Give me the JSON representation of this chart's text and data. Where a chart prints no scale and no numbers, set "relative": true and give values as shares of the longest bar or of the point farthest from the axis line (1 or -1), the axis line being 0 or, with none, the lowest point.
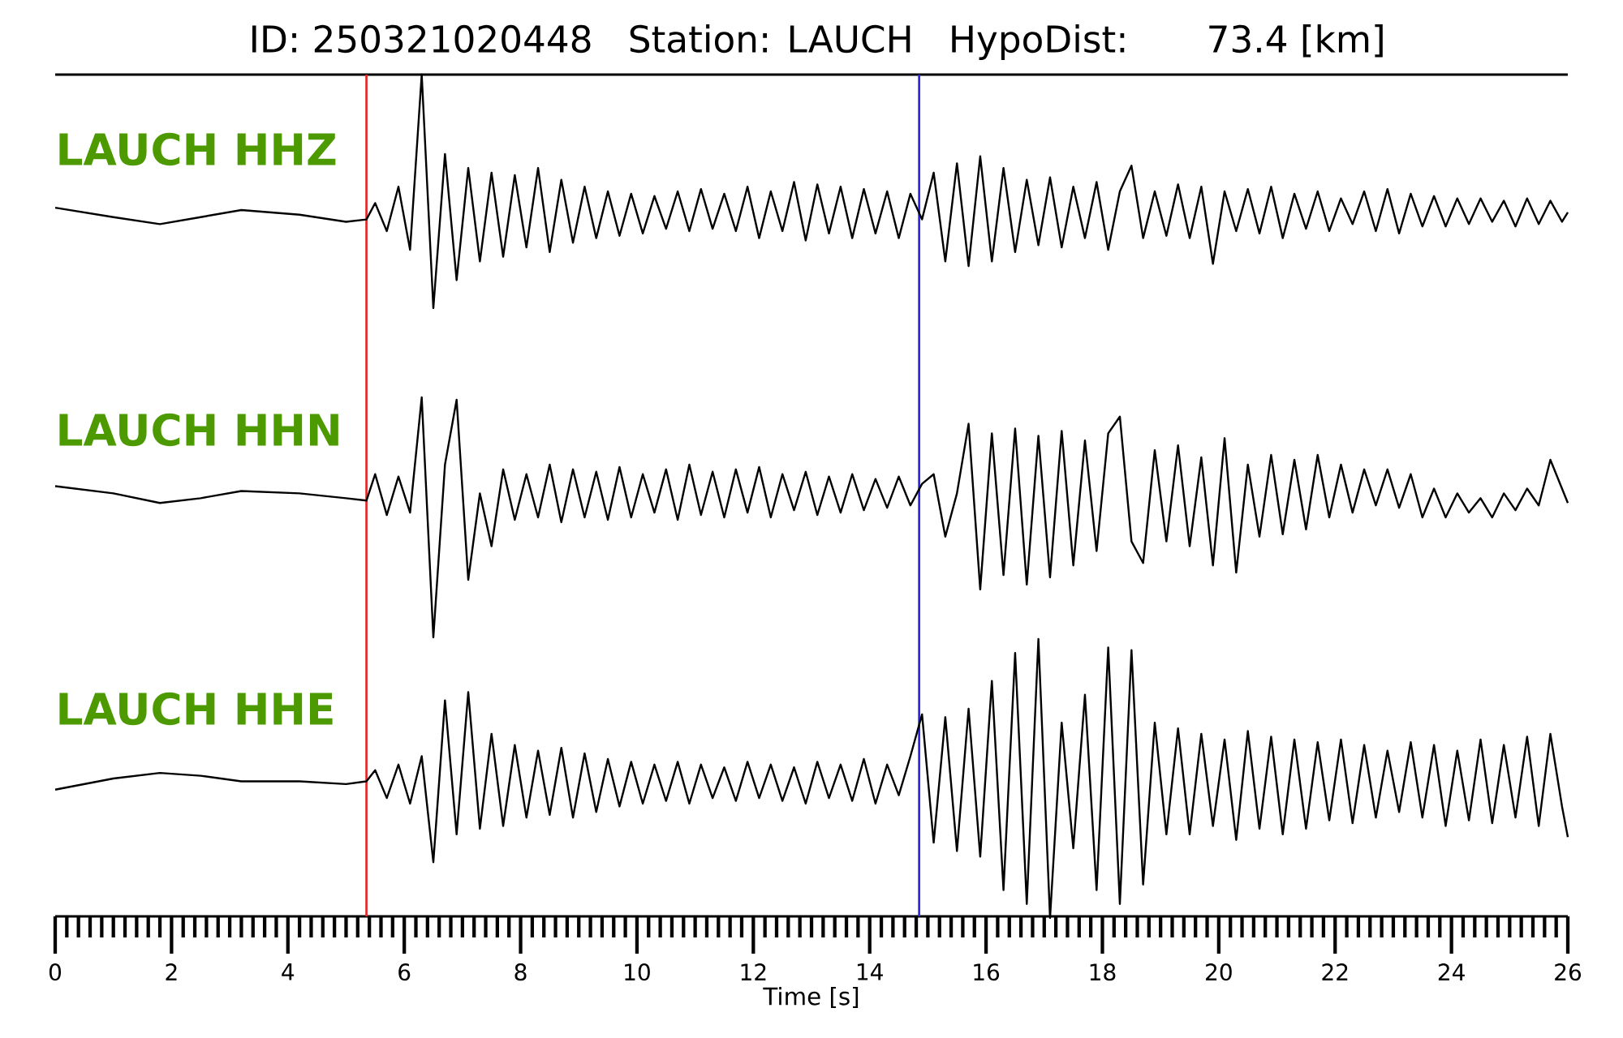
{
  "chart_data": [
    {
      "type": "line",
      "title": "ID: 250321020448   Station: LAUCH   HypoDist:     73.4 [km]",
      "relative": true,
      "tick_labels": false,
      "xlim": [
        0,
        26
      ],
      "x": [
        0,
        1,
        1.8,
        2.5,
        3.2,
        4.2,
        5,
        5.35,
        5.5,
        5.7,
        5.9,
        6.1,
        6.3,
        6.5,
        6.7,
        6.9,
        7.1,
        7.3,
        7.5,
        7.7,
        7.9,
        8.1,
        8.3,
        8.5,
        8.7,
        8.9,
        9.1,
        9.3,
        9.5,
        9.7,
        9.9,
        10.1,
        10.3,
        10.5,
        10.7,
        10.9,
        11.1,
        11.3,
        11.5,
        11.7,
        11.9,
        12.1,
        12.3,
        12.5,
        12.7,
        12.9,
        13.1,
        13.3,
        13.5,
        13.7,
        13.9,
        14.1,
        14.3,
        14.5,
        14.7,
        14.9,
        15.1,
        15.3,
        15.5,
        15.7,
        15.9,
        16.1,
        16.3,
        16.5,
        16.7,
        16.9,
        17.1,
        17.3,
        17.5,
        17.7,
        17.9,
        18.1,
        18.3,
        18.5,
        18.7,
        18.9,
        19.1,
        19.3,
        19.5,
        19.7,
        19.9,
        20.1,
        20.3,
        20.5,
        20.7,
        20.9,
        21.1,
        21.3,
        21.5,
        21.7,
        21.9,
        22.1,
        22.3,
        22.5,
        22.7,
        22.9,
        23.1,
        23.3,
        23.5,
        23.7,
        23.9,
        24.1,
        24.3,
        24.5,
        24.7,
        24.9,
        25.1,
        25.3,
        25.5,
        25.7,
        25.9,
        26
      ],
      "series": [
        {
          "name": "LAUCH HHZ",
          "color": "#000000",
          "values": [
            0.43,
            0.39,
            0.36,
            0.39,
            0.42,
            0.4,
            0.37,
            0.38,
            0.45,
            0.33,
            0.52,
            0.25,
            1.0,
            0.0,
            0.66,
            0.12,
            0.6,
            0.2,
            0.58,
            0.22,
            0.57,
            0.26,
            0.6,
            0.24,
            0.55,
            0.28,
            0.52,
            0.3,
            0.5,
            0.31,
            0.49,
            0.32,
            0.48,
            0.34,
            0.5,
            0.33,
            0.51,
            0.34,
            0.49,
            0.33,
            0.52,
            0.3,
            0.5,
            0.33,
            0.54,
            0.29,
            0.53,
            0.32,
            0.52,
            0.3,
            0.51,
            0.32,
            0.5,
            0.3,
            0.49,
            0.38,
            0.58,
            0.2,
            0.62,
            0.18,
            0.65,
            0.2,
            0.6,
            0.24,
            0.55,
            0.27,
            0.56,
            0.26,
            0.52,
            0.3,
            0.54,
            0.25,
            0.5,
            0.61,
            0.3,
            0.5,
            0.31,
            0.53,
            0.3,
            0.52,
            0.19,
            0.5,
            0.33,
            0.51,
            0.32,
            0.52,
            0.3,
            0.49,
            0.34,
            0.5,
            0.33,
            0.47,
            0.36,
            0.5,
            0.33,
            0.51,
            0.32,
            0.49,
            0.35,
            0.48,
            0.35,
            0.47,
            0.36,
            0.47,
            0.37,
            0.46,
            0.35,
            0.47,
            0.36,
            0.46,
            0.37,
            0.41
          ]
        }
      ],
      "ref_lines": [
        {
          "axis": "x",
          "value": 5.35,
          "color": "#e32626"
        },
        {
          "axis": "x",
          "value": 14.85,
          "color": "#2626e3"
        }
      ]
    },
    {
      "type": "line",
      "relative": true,
      "tick_labels": false,
      "xlim": [
        0,
        26
      ],
      "x": [
        0,
        1,
        1.8,
        2.5,
        3.2,
        4.2,
        5,
        5.35,
        5.5,
        5.7,
        5.9,
        6.1,
        6.3,
        6.5,
        6.7,
        6.9,
        7.1,
        7.3,
        7.5,
        7.7,
        7.9,
        8.1,
        8.3,
        8.5,
        8.7,
        8.9,
        9.1,
        9.3,
        9.5,
        9.7,
        9.9,
        10.1,
        10.3,
        10.5,
        10.7,
        10.9,
        11.1,
        11.3,
        11.5,
        11.7,
        11.9,
        12.1,
        12.3,
        12.5,
        12.7,
        12.9,
        13.1,
        13.3,
        13.5,
        13.7,
        13.9,
        14.1,
        14.3,
        14.5,
        14.7,
        14.9,
        15.1,
        15.3,
        15.5,
        15.7,
        15.9,
        16.1,
        16.3,
        16.5,
        16.7,
        16.9,
        17.1,
        17.3,
        17.5,
        17.7,
        17.9,
        18.1,
        18.3,
        18.5,
        18.7,
        18.9,
        19.1,
        19.3,
        19.5,
        19.7,
        19.9,
        20.1,
        20.3,
        20.5,
        20.7,
        20.9,
        21.1,
        21.3,
        21.5,
        21.7,
        21.9,
        22.1,
        22.3,
        22.5,
        22.7,
        22.9,
        23.1,
        23.3,
        23.5,
        23.7,
        23.9,
        24.1,
        24.3,
        24.5,
        24.7,
        24.9,
        25.1,
        25.3,
        25.5,
        25.7,
        25.9,
        26
      ],
      "series": [
        {
          "name": "LAUCH HHN",
          "color": "#000000",
          "values": [
            0.63,
            0.6,
            0.56,
            0.58,
            0.61,
            0.6,
            0.58,
            0.57,
            0.68,
            0.51,
            0.67,
            0.52,
            1.0,
            0.0,
            0.72,
            0.99,
            0.24,
            0.6,
            0.38,
            0.7,
            0.49,
            0.68,
            0.5,
            0.72,
            0.48,
            0.7,
            0.5,
            0.69,
            0.49,
            0.71,
            0.5,
            0.68,
            0.52,
            0.7,
            0.49,
            0.72,
            0.51,
            0.69,
            0.5,
            0.7,
            0.52,
            0.71,
            0.5,
            0.68,
            0.53,
            0.69,
            0.51,
            0.67,
            0.52,
            0.68,
            0.53,
            0.66,
            0.54,
            0.67,
            0.55,
            0.64,
            0.68,
            0.42,
            0.6,
            0.89,
            0.2,
            0.85,
            0.26,
            0.87,
            0.22,
            0.84,
            0.25,
            0.86,
            0.3,
            0.82,
            0.36,
            0.85,
            0.92,
            0.4,
            0.31,
            0.78,
            0.4,
            0.8,
            0.38,
            0.75,
            0.3,
            0.83,
            0.27,
            0.72,
            0.42,
            0.76,
            0.43,
            0.74,
            0.45,
            0.76,
            0.5,
            0.72,
            0.52,
            0.7,
            0.55,
            0.7,
            0.54,
            0.68,
            0.5,
            0.62,
            0.5,
            0.6,
            0.52,
            0.58,
            0.5,
            0.6,
            0.53,
            0.62,
            0.55,
            0.74,
            0.62,
            0.56
          ]
        }
      ],
      "ref_lines": [
        {
          "axis": "x",
          "value": 5.35,
          "color": "#e32626"
        },
        {
          "axis": "x",
          "value": 14.85,
          "color": "#2626e3"
        }
      ]
    },
    {
      "type": "line",
      "relative": true,
      "xlabel": "Time [s]",
      "xlim": [
        0,
        26
      ],
      "xticks": [
        0,
        2,
        4,
        6,
        8,
        10,
        12,
        14,
        16,
        18,
        20,
        22,
        24,
        26,
        {
          "value": 0.2,
          "label": null
        },
        {
          "value": 0.4,
          "label": null
        },
        {
          "value": 0.6,
          "label": null
        },
        {
          "value": 0.8,
          "label": null
        },
        {
          "value": 1,
          "label": null
        },
        {
          "value": 1.2,
          "label": null
        },
        {
          "value": 1.4,
          "label": null
        },
        {
          "value": 1.6,
          "label": null
        },
        {
          "value": 1.8,
          "label": null
        },
        {
          "value": 2.2,
          "label": null
        },
        {
          "value": 2.4,
          "label": null
        },
        {
          "value": 2.6,
          "label": null
        },
        {
          "value": 2.8,
          "label": null
        },
        {
          "value": 3,
          "label": null
        },
        {
          "value": 3.2,
          "label": null
        },
        {
          "value": 3.4,
          "label": null
        },
        {
          "value": 3.6,
          "label": null
        },
        {
          "value": 3.8,
          "label": null
        },
        {
          "value": 4.2,
          "label": null
        },
        {
          "value": 4.4,
          "label": null
        },
        {
          "value": 4.6,
          "label": null
        },
        {
          "value": 4.8,
          "label": null
        },
        {
          "value": 5,
          "label": null
        },
        {
          "value": 5.2,
          "label": null
        },
        {
          "value": 5.4,
          "label": null
        },
        {
          "value": 5.6,
          "label": null
        },
        {
          "value": 5.8,
          "label": null
        },
        {
          "value": 6.2,
          "label": null
        },
        {
          "value": 6.4,
          "label": null
        },
        {
          "value": 6.6,
          "label": null
        },
        {
          "value": 6.8,
          "label": null
        },
        {
          "value": 7,
          "label": null
        },
        {
          "value": 7.2,
          "label": null
        },
        {
          "value": 7.4,
          "label": null
        },
        {
          "value": 7.6,
          "label": null
        },
        {
          "value": 7.8,
          "label": null
        },
        {
          "value": 8.2,
          "label": null
        },
        {
          "value": 8.4,
          "label": null
        },
        {
          "value": 8.6,
          "label": null
        },
        {
          "value": 8.8,
          "label": null
        },
        {
          "value": 9,
          "label": null
        },
        {
          "value": 9.2,
          "label": null
        },
        {
          "value": 9.4,
          "label": null
        },
        {
          "value": 9.6,
          "label": null
        },
        {
          "value": 9.8,
          "label": null
        },
        {
          "value": 10.2,
          "label": null
        },
        {
          "value": 10.4,
          "label": null
        },
        {
          "value": 10.6,
          "label": null
        },
        {
          "value": 10.8,
          "label": null
        },
        {
          "value": 11,
          "label": null
        },
        {
          "value": 11.2,
          "label": null
        },
        {
          "value": 11.4,
          "label": null
        },
        {
          "value": 11.6,
          "label": null
        },
        {
          "value": 11.8,
          "label": null
        },
        {
          "value": 12.2,
          "label": null
        },
        {
          "value": 12.4,
          "label": null
        },
        {
          "value": 12.6,
          "label": null
        },
        {
          "value": 12.8,
          "label": null
        },
        {
          "value": 13,
          "label": null
        },
        {
          "value": 13.2,
          "label": null
        },
        {
          "value": 13.4,
          "label": null
        },
        {
          "value": 13.6,
          "label": null
        },
        {
          "value": 13.8,
          "label": null
        },
        {
          "value": 14.2,
          "label": null
        },
        {
          "value": 14.4,
          "label": null
        },
        {
          "value": 14.6,
          "label": null
        },
        {
          "value": 14.8,
          "label": null
        },
        {
          "value": 15,
          "label": null
        },
        {
          "value": 15.2,
          "label": null
        },
        {
          "value": 15.4,
          "label": null
        },
        {
          "value": 15.6,
          "label": null
        },
        {
          "value": 15.8,
          "label": null
        },
        {
          "value": 16.2,
          "label": null
        },
        {
          "value": 16.4,
          "label": null
        },
        {
          "value": 16.6,
          "label": null
        },
        {
          "value": 16.8,
          "label": null
        },
        {
          "value": 17,
          "label": null
        },
        {
          "value": 17.2,
          "label": null
        },
        {
          "value": 17.4,
          "label": null
        },
        {
          "value": 17.6,
          "label": null
        },
        {
          "value": 17.8,
          "label": null
        },
        {
          "value": 18.2,
          "label": null
        },
        {
          "value": 18.4,
          "label": null
        },
        {
          "value": 18.6,
          "label": null
        },
        {
          "value": 18.8,
          "label": null
        },
        {
          "value": 19,
          "label": null
        },
        {
          "value": 19.2,
          "label": null
        },
        {
          "value": 19.4,
          "label": null
        },
        {
          "value": 19.6,
          "label": null
        },
        {
          "value": 19.8,
          "label": null
        },
        {
          "value": 20.2,
          "label": null
        },
        {
          "value": 20.4,
          "label": null
        },
        {
          "value": 20.6,
          "label": null
        },
        {
          "value": 20.8,
          "label": null
        },
        {
          "value": 21,
          "label": null
        },
        {
          "value": 21.2,
          "label": null
        },
        {
          "value": 21.4,
          "label": null
        },
        {
          "value": 21.6,
          "label": null
        },
        {
          "value": 21.8,
          "label": null
        },
        {
          "value": 22.2,
          "label": null
        },
        {
          "value": 22.4,
          "label": null
        },
        {
          "value": 22.6,
          "label": null
        },
        {
          "value": 22.8,
          "label": null
        },
        {
          "value": 23,
          "label": null
        },
        {
          "value": 23.2,
          "label": null
        },
        {
          "value": 23.4,
          "label": null
        },
        {
          "value": 23.6,
          "label": null
        },
        {
          "value": 23.8,
          "label": null
        },
        {
          "value": 24.2,
          "label": null
        },
        {
          "value": 24.4,
          "label": null
        },
        {
          "value": 24.6,
          "label": null
        },
        {
          "value": 24.8,
          "label": null
        },
        {
          "value": 25,
          "label": null
        },
        {
          "value": 25.2,
          "label": null
        },
        {
          "value": 25.4,
          "label": null
        },
        {
          "value": 25.6,
          "label": null
        },
        {
          "value": 25.8,
          "label": null
        }
      ],
      "x": [
        0,
        1,
        1.8,
        2.5,
        3.2,
        4.2,
        5,
        5.35,
        5.5,
        5.7,
        5.9,
        6.1,
        6.3,
        6.5,
        6.7,
        6.9,
        7.1,
        7.3,
        7.5,
        7.7,
        7.9,
        8.1,
        8.3,
        8.5,
        8.7,
        8.9,
        9.1,
        9.3,
        9.5,
        9.7,
        9.9,
        10.1,
        10.3,
        10.5,
        10.7,
        10.9,
        11.1,
        11.3,
        11.5,
        11.7,
        11.9,
        12.1,
        12.3,
        12.5,
        12.7,
        12.9,
        13.1,
        13.3,
        13.5,
        13.7,
        13.9,
        14.1,
        14.3,
        14.5,
        14.7,
        14.9,
        15.1,
        15.3,
        15.5,
        15.7,
        15.9,
        16.1,
        16.3,
        16.5,
        16.7,
        16.9,
        17.1,
        17.3,
        17.5,
        17.7,
        17.9,
        18.1,
        18.3,
        18.5,
        18.7,
        18.9,
        19.1,
        19.3,
        19.5,
        19.7,
        19.9,
        20.1,
        20.3,
        20.5,
        20.7,
        20.9,
        21.1,
        21.3,
        21.5,
        21.7,
        21.9,
        22.1,
        22.3,
        22.5,
        22.7,
        22.9,
        23.1,
        23.3,
        23.5,
        23.7,
        23.9,
        24.1,
        24.3,
        24.5,
        24.7,
        24.9,
        25.1,
        25.3,
        25.5,
        25.7,
        25.9,
        26
      ],
      "series": [
        {
          "name": "LAUCH HHE",
          "color": "#000000",
          "values": [
            0.46,
            0.5,
            0.52,
            0.51,
            0.49,
            0.49,
            0.48,
            0.49,
            0.53,
            0.43,
            0.55,
            0.41,
            0.58,
            0.2,
            0.78,
            0.3,
            0.81,
            0.32,
            0.66,
            0.33,
            0.62,
            0.36,
            0.6,
            0.37,
            0.61,
            0.36,
            0.59,
            0.38,
            0.57,
            0.4,
            0.56,
            0.41,
            0.55,
            0.42,
            0.56,
            0.41,
            0.55,
            0.43,
            0.54,
            0.42,
            0.56,
            0.43,
            0.55,
            0.42,
            0.54,
            0.41,
            0.56,
            0.43,
            0.55,
            0.42,
            0.57,
            0.41,
            0.55,
            0.44,
            0.58,
            0.73,
            0.27,
            0.72,
            0.24,
            0.75,
            0.22,
            0.85,
            0.1,
            0.95,
            0.05,
            1.0,
            0.0,
            0.7,
            0.25,
            0.8,
            0.1,
            0.97,
            0.05,
            0.96,
            0.12,
            0.7,
            0.3,
            0.68,
            0.3,
            0.66,
            0.33,
            0.64,
            0.28,
            0.67,
            0.32,
            0.65,
            0.3,
            0.64,
            0.32,
            0.63,
            0.35,
            0.64,
            0.34,
            0.62,
            0.36,
            0.6,
            0.38,
            0.63,
            0.36,
            0.62,
            0.33,
            0.6,
            0.35,
            0.64,
            0.34,
            0.62,
            0.36,
            0.65,
            0.33,
            0.66,
            0.4,
            0.29
          ]
        }
      ],
      "ref_lines": [
        {
          "axis": "x",
          "value": 5.35,
          "color": "#e32626"
        },
        {
          "axis": "x",
          "value": 14.85,
          "color": "#2626e3"
        }
      ]
    }
  ]
}
